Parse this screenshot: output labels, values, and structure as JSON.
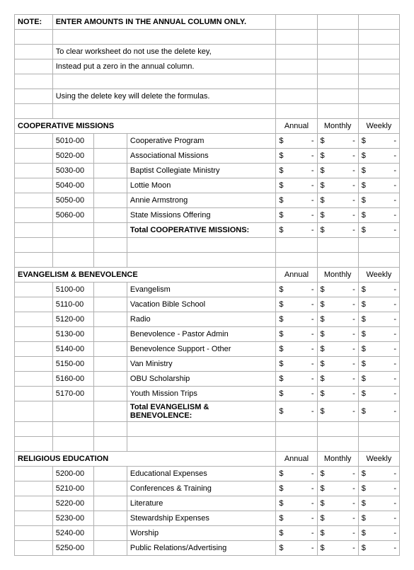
{
  "note": {
    "label": "NOTE:",
    "title": "ENTER AMOUNTS IN THE ANNUAL COLUMN ONLY.",
    "line1a": "To clear worksheet do not use the delete key,",
    "line1b": " Instead put a zero in the annual column.",
    "line2": "Using the delete key will delete the formulas."
  },
  "periods": {
    "annual": "Annual",
    "monthly": "Monthly",
    "weekly": "Weekly"
  },
  "currency": "$",
  "dash": "-",
  "sections": [
    {
      "title": "COOPERATIVE MISSIONS",
      "total": "Total COOPERATIVE MISSIONS:",
      "items": [
        {
          "code": "5010-00",
          "desc": "Cooperative Program"
        },
        {
          "code": "5020-00",
          "desc": "Associational Missions"
        },
        {
          "code": "5030-00",
          "desc": "Baptist Collegiate Ministry"
        },
        {
          "code": "5040-00",
          "desc": "Lottie Moon"
        },
        {
          "code": "5050-00",
          "desc": "Annie Armstrong"
        },
        {
          "code": "5060-00",
          "desc": "State Missions Offering"
        }
      ]
    },
    {
      "title": "EVANGELISM & BENEVOLENCE",
      "total": "Total EVANGELISM & BENEVOLENCE:",
      "items": [
        {
          "code": "5100-00",
          "desc": "Evangelism"
        },
        {
          "code": "5110-00",
          "desc": "Vacation Bible School"
        },
        {
          "code": "5120-00",
          "desc": "Radio"
        },
        {
          "code": "5130-00",
          "desc": "Benevolence - Pastor Admin"
        },
        {
          "code": "5140-00",
          "desc": "Benevolence Support - Other"
        },
        {
          "code": "5150-00",
          "desc": "Van Ministry"
        },
        {
          "code": "5160-00",
          "desc": "OBU Scholarship"
        },
        {
          "code": "5170-00",
          "desc": "Youth Mission Trips"
        }
      ]
    },
    {
      "title": "RELIGIOUS EDUCATION",
      "total": null,
      "items": [
        {
          "code": "5200-00",
          "desc": "Educational Expenses"
        },
        {
          "code": "5210-00",
          "desc": "Conferences & Training"
        },
        {
          "code": "5220-00",
          "desc": "Literature"
        },
        {
          "code": "5230-00",
          "desc": "Stewardship Expenses"
        },
        {
          "code": "5240-00",
          "desc": "Worship"
        },
        {
          "code": "5250-00",
          "desc": "Public Relations/Advertising"
        }
      ]
    }
  ]
}
